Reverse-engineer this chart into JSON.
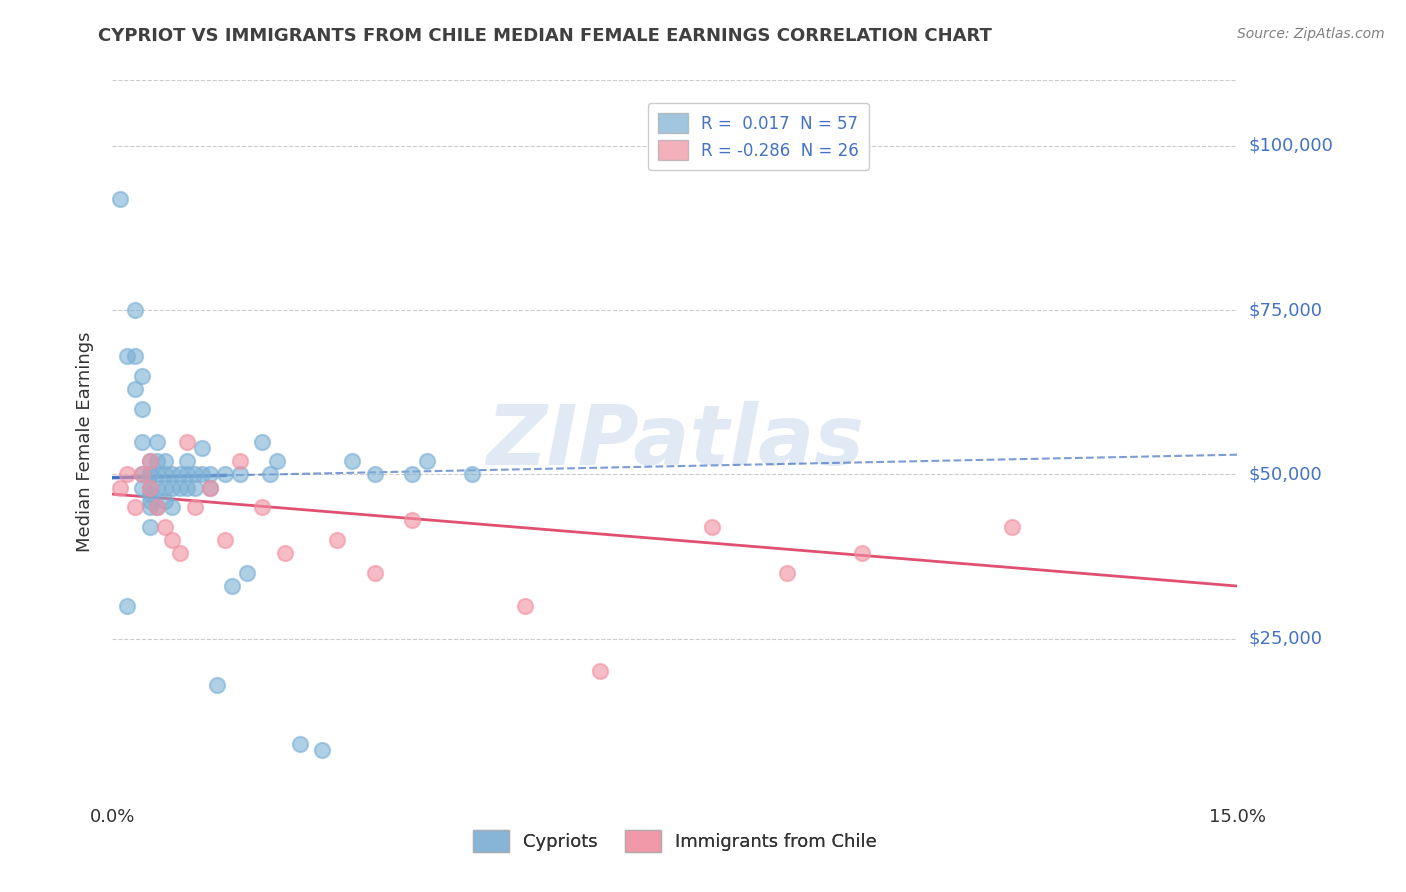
{
  "title": "CYPRIOT VS IMMIGRANTS FROM CHILE MEDIAN FEMALE EARNINGS CORRELATION CHART",
  "source": "Source: ZipAtlas.com",
  "ylabel": "Median Female Earnings",
  "y_tick_values": [
    25000,
    50000,
    75000,
    100000
  ],
  "y_tick_labels": [
    "$25,000",
    "$50,000",
    "$75,000",
    "$100,000"
  ],
  "cypriot_color": "#7bafd4",
  "chile_color": "#f090a0",
  "line_cypriot_color": "#4472c4",
  "line_chile_color": "#e05070",
  "watermark_text": "ZIPatlas",
  "xlim": [
    0.0,
    0.15
  ],
  "ylim": [
    0,
    110000
  ],
  "r_cypriot": 0.017,
  "n_cypriot": 57,
  "r_chile": -0.286,
  "n_chile": 26,
  "legend1_label1": "R =  0.017  N = 57",
  "legend1_label2": "R = -0.286  N = 26",
  "legend2_label1": "Cypriots",
  "legend2_label2": "Immigrants from Chile",
  "cypriot_x": [
    0.001,
    0.002,
    0.002,
    0.003,
    0.003,
    0.003,
    0.004,
    0.004,
    0.004,
    0.004,
    0.004,
    0.005,
    0.005,
    0.005,
    0.005,
    0.005,
    0.005,
    0.005,
    0.005,
    0.006,
    0.006,
    0.006,
    0.006,
    0.006,
    0.007,
    0.007,
    0.007,
    0.007,
    0.008,
    0.008,
    0.008,
    0.009,
    0.009,
    0.01,
    0.01,
    0.01,
    0.011,
    0.011,
    0.012,
    0.012,
    0.013,
    0.013,
    0.014,
    0.015,
    0.016,
    0.017,
    0.018,
    0.02,
    0.021,
    0.022,
    0.025,
    0.028,
    0.032,
    0.035,
    0.04,
    0.042,
    0.048
  ],
  "cypriot_y": [
    92000,
    68000,
    30000,
    75000,
    68000,
    63000,
    65000,
    60000,
    55000,
    50000,
    48000,
    52000,
    50000,
    50000,
    48000,
    47000,
    46000,
    45000,
    42000,
    55000,
    52000,
    50000,
    48000,
    45000,
    52000,
    50000,
    48000,
    46000,
    50000,
    48000,
    45000,
    50000,
    48000,
    52000,
    50000,
    48000,
    50000,
    48000,
    54000,
    50000,
    50000,
    48000,
    18000,
    50000,
    33000,
    50000,
    35000,
    55000,
    50000,
    52000,
    9000,
    8000,
    52000,
    50000,
    50000,
    52000,
    50000
  ],
  "chile_x": [
    0.001,
    0.002,
    0.003,
    0.004,
    0.005,
    0.005,
    0.006,
    0.007,
    0.008,
    0.009,
    0.01,
    0.011,
    0.013,
    0.015,
    0.017,
    0.02,
    0.023,
    0.03,
    0.035,
    0.04,
    0.055,
    0.065,
    0.08,
    0.09,
    0.1,
    0.12
  ],
  "chile_y": [
    48000,
    50000,
    45000,
    50000,
    48000,
    52000,
    45000,
    42000,
    40000,
    38000,
    55000,
    45000,
    48000,
    40000,
    52000,
    45000,
    38000,
    40000,
    35000,
    43000,
    30000,
    20000,
    42000,
    35000,
    38000,
    42000
  ],
  "cypriot_line_x0": 0.0,
  "cypriot_line_y0": 49500,
  "cypriot_line_x1": 0.15,
  "cypriot_line_y1": 53000,
  "chile_line_x0": 0.0,
  "chile_line_y0": 47000,
  "chile_line_x1": 0.15,
  "chile_line_y1": 33000
}
